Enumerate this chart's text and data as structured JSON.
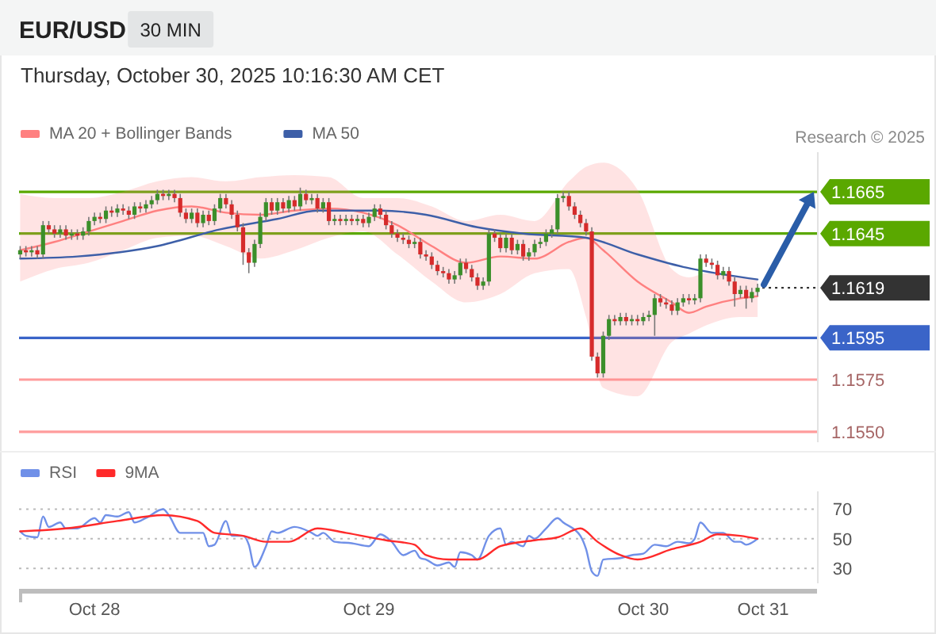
{
  "chart_data": [
    {
      "type": "candlestick",
      "title": "EUR/USD",
      "subtitle": "Thursday, October 30, 2025 10:16:30 AM CET",
      "annotations": [
        "30 MIN",
        "Research © 2025"
      ],
      "x": [
        "2025-10-27T17:30",
        "2025-10-27T18:00",
        "2025-10-27T18:30",
        "2025-10-27T19:00",
        "2025-10-27T19:30",
        "2025-10-27T20:00",
        "2025-10-27T20:30",
        "2025-10-27T21:00",
        "2025-10-27T21:30",
        "2025-10-27T22:00",
        "2025-10-27T22:30",
        "2025-10-27T23:00",
        "2025-10-27T23:30",
        "2025-10-28T00:00",
        "2025-10-28T00:30",
        "2025-10-28T01:00",
        "2025-10-28T01:30",
        "2025-10-28T02:00",
        "2025-10-28T02:30",
        "2025-10-28T03:00",
        "2025-10-28T03:30",
        "2025-10-28T04:00",
        "2025-10-28T04:30",
        "2025-10-28T05:00",
        "2025-10-28T05:30",
        "2025-10-28T06:00",
        "2025-10-28T06:30",
        "2025-10-28T07:00",
        "2025-10-28T07:30",
        "2025-10-28T08:00",
        "2025-10-28T08:30",
        "2025-10-28T09:00",
        "2025-10-28T09:30",
        "2025-10-28T10:00",
        "2025-10-28T10:30",
        "2025-10-28T11:00",
        "2025-10-28T11:30",
        "2025-10-28T12:00",
        "2025-10-28T12:30",
        "2025-10-28T13:00",
        "2025-10-28T13:30",
        "2025-10-28T14:00",
        "2025-10-28T14:30",
        "2025-10-28T15:00",
        "2025-10-28T15:30",
        "2025-10-28T16:00",
        "2025-10-28T16:30",
        "2025-10-28T17:00",
        "2025-10-28T17:30",
        "2025-10-28T18:00",
        "2025-10-28T18:30",
        "2025-10-28T19:00",
        "2025-10-28T19:30",
        "2025-10-28T20:00",
        "2025-10-28T20:30",
        "2025-10-28T21:00",
        "2025-10-28T21:30",
        "2025-10-28T22:00",
        "2025-10-28T22:30",
        "2025-10-28T23:00",
        "2025-10-28T23:30",
        "2025-10-29T00:00",
        "2025-10-29T00:30",
        "2025-10-29T01:00",
        "2025-10-29T01:30",
        "2025-10-29T02:00",
        "2025-10-29T02:30",
        "2025-10-29T03:00",
        "2025-10-29T03:30",
        "2025-10-29T04:00",
        "2025-10-29T04:30",
        "2025-10-29T05:00",
        "2025-10-29T05:30",
        "2025-10-29T06:00",
        "2025-10-29T06:30",
        "2025-10-29T07:00",
        "2025-10-29T07:30",
        "2025-10-29T08:00",
        "2025-10-29T08:30",
        "2025-10-29T09:00",
        "2025-10-29T09:30",
        "2025-10-29T10:00",
        "2025-10-29T10:30",
        "2025-10-29T11:00",
        "2025-10-29T11:30",
        "2025-10-29T12:00",
        "2025-10-29T12:30",
        "2025-10-29T13:00",
        "2025-10-29T13:30",
        "2025-10-29T14:00",
        "2025-10-29T14:30",
        "2025-10-29T15:00",
        "2025-10-29T15:30",
        "2025-10-29T16:00",
        "2025-10-29T16:30",
        "2025-10-29T17:00",
        "2025-10-29T17:30",
        "2025-10-29T18:00",
        "2025-10-29T18:30",
        "2025-10-29T19:00",
        "2025-10-29T19:30",
        "2025-10-29T20:00",
        "2025-10-29T20:30",
        "2025-10-29T21:00",
        "2025-10-29T21:30",
        "2025-10-29T22:00",
        "2025-10-29T22:30",
        "2025-10-29T23:00",
        "2025-10-29T23:30",
        "2025-10-30T00:00",
        "2025-10-30T00:30",
        "2025-10-30T01:00",
        "2025-10-30T01:30",
        "2025-10-30T02:00",
        "2025-10-30T02:30",
        "2025-10-30T03:00",
        "2025-10-30T03:30",
        "2025-10-30T04:00",
        "2025-10-30T04:30",
        "2025-10-30T05:00",
        "2025-10-30T05:30",
        "2025-10-30T06:00",
        "2025-10-30T06:30",
        "2025-10-30T07:00",
        "2025-10-30T07:30",
        "2025-10-30T08:00",
        "2025-10-30T08:30",
        "2025-10-30T09:00",
        "2025-10-30T09:30",
        "2025-10-30T10:00"
      ],
      "ohlc": [
        [
          1.1635,
          1.1639,
          1.1633,
          1.1637
        ],
        [
          1.1637,
          1.1639,
          1.1634,
          1.1636
        ],
        [
          1.1636,
          1.1639,
          1.1634,
          1.1637
        ],
        [
          1.1637,
          1.1639,
          1.1633,
          1.1635
        ],
        [
          1.1635,
          1.1651,
          1.1633,
          1.1649
        ],
        [
          1.1649,
          1.1651,
          1.1645,
          1.1647
        ],
        [
          1.1647,
          1.1649,
          1.1643,
          1.1645
        ],
        [
          1.1645,
          1.1649,
          1.1643,
          1.1647
        ],
        [
          1.1647,
          1.1649,
          1.1642,
          1.1644
        ],
        [
          1.1644,
          1.1647,
          1.1642,
          1.1645
        ],
        [
          1.1645,
          1.1647,
          1.1642,
          1.1644
        ],
        [
          1.1644,
          1.1648,
          1.1642,
          1.1646
        ],
        [
          1.1646,
          1.1653,
          1.1644,
          1.1651
        ],
        [
          1.1651,
          1.1655,
          1.1649,
          1.1653
        ],
        [
          1.1653,
          1.1655,
          1.165,
          1.1652
        ],
        [
          1.1652,
          1.1658,
          1.165,
          1.1656
        ],
        [
          1.1656,
          1.1658,
          1.1653,
          1.1655
        ],
        [
          1.1655,
          1.1659,
          1.1653,
          1.1657
        ],
        [
          1.1657,
          1.1659,
          1.1654,
          1.1656
        ],
        [
          1.1656,
          1.1658,
          1.1652,
          1.1654
        ],
        [
          1.1654,
          1.166,
          1.1652,
          1.1658
        ],
        [
          1.1658,
          1.166,
          1.1655,
          1.1657
        ],
        [
          1.1657,
          1.1661,
          1.1655,
          1.1659
        ],
        [
          1.1659,
          1.1663,
          1.1657,
          1.1661
        ],
        [
          1.1661,
          1.1666,
          1.1659,
          1.1664
        ],
        [
          1.1664,
          1.1666,
          1.1661,
          1.1663
        ],
        [
          1.1663,
          1.1666,
          1.1661,
          1.1664
        ],
        [
          1.1664,
          1.1666,
          1.166,
          1.1662
        ],
        [
          1.1662,
          1.1664,
          1.1653,
          1.1655
        ],
        [
          1.1655,
          1.1657,
          1.165,
          1.1652
        ],
        [
          1.1652,
          1.1657,
          1.165,
          1.1655
        ],
        [
          1.1655,
          1.1657,
          1.1648,
          1.165
        ],
        [
          1.165,
          1.1656,
          1.1648,
          1.1654
        ],
        [
          1.1654,
          1.1656,
          1.1649,
          1.1651
        ],
        [
          1.1651,
          1.1659,
          1.1649,
          1.1657
        ],
        [
          1.1657,
          1.1664,
          1.1655,
          1.1662
        ],
        [
          1.1662,
          1.1664,
          1.1657,
          1.1659
        ],
        [
          1.1659,
          1.1661,
          1.1652,
          1.1654
        ],
        [
          1.1654,
          1.1656,
          1.1646,
          1.1648
        ],
        [
          1.1648,
          1.165,
          1.163,
          1.1636
        ],
        [
          1.1636,
          1.1638,
          1.1626,
          1.1631
        ],
        [
          1.1631,
          1.1642,
          1.1629,
          1.164
        ],
        [
          1.164,
          1.1655,
          1.1638,
          1.1653
        ],
        [
          1.1653,
          1.1662,
          1.1651,
          1.166
        ],
        [
          1.166,
          1.1662,
          1.1654,
          1.1656
        ],
        [
          1.1656,
          1.1662,
          1.1654,
          1.166
        ],
        [
          1.166,
          1.1662,
          1.1655,
          1.1657
        ],
        [
          1.1657,
          1.1663,
          1.1655,
          1.1661
        ],
        [
          1.1661,
          1.1663,
          1.1656,
          1.1658
        ],
        [
          1.1658,
          1.1667,
          1.1656,
          1.1664
        ],
        [
          1.1664,
          1.1666,
          1.1659,
          1.1661
        ],
        [
          1.1661,
          1.1664,
          1.1659,
          1.1662
        ],
        [
          1.1662,
          1.1664,
          1.1655,
          1.1657
        ],
        [
          1.1657,
          1.1662,
          1.1655,
          1.166
        ],
        [
          1.166,
          1.1662,
          1.1649,
          1.1651
        ],
        [
          1.1651,
          1.1654,
          1.1649,
          1.1652
        ],
        [
          1.1652,
          1.1654,
          1.1649,
          1.1651
        ],
        [
          1.1651,
          1.1654,
          1.1649,
          1.1652
        ],
        [
          1.1652,
          1.1654,
          1.1649,
          1.1651
        ],
        [
          1.1651,
          1.1654,
          1.1649,
          1.1652
        ],
        [
          1.1652,
          1.1654,
          1.1648,
          1.165
        ],
        [
          1.165,
          1.1655,
          1.1648,
          1.1653
        ],
        [
          1.1653,
          1.1659,
          1.1651,
          1.1657
        ],
        [
          1.1657,
          1.1659,
          1.1652,
          1.1654
        ],
        [
          1.1654,
          1.1656,
          1.1647,
          1.1649
        ],
        [
          1.1649,
          1.1651,
          1.1643,
          1.1645
        ],
        [
          1.1645,
          1.1647,
          1.1641,
          1.1643
        ],
        [
          1.1643,
          1.1645,
          1.164,
          1.1642
        ],
        [
          1.1642,
          1.1644,
          1.1638,
          1.164
        ],
        [
          1.164,
          1.1643,
          1.1638,
          1.1641
        ],
        [
          1.1641,
          1.1643,
          1.1633,
          1.1635
        ],
        [
          1.1635,
          1.1637,
          1.1632,
          1.1634
        ],
        [
          1.1634,
          1.1636,
          1.1628,
          1.163
        ],
        [
          1.163,
          1.1632,
          1.1625,
          1.1627
        ],
        [
          1.1627,
          1.1629,
          1.1624,
          1.1626
        ],
        [
          1.1626,
          1.1628,
          1.1621,
          1.1623
        ],
        [
          1.1623,
          1.1627,
          1.1621,
          1.1625
        ],
        [
          1.1625,
          1.1633,
          1.1623,
          1.1631
        ],
        [
          1.1631,
          1.1633,
          1.1626,
          1.1628
        ],
        [
          1.1628,
          1.163,
          1.1622,
          1.1624
        ],
        [
          1.1624,
          1.1626,
          1.1618,
          1.162
        ],
        [
          1.162,
          1.1624,
          1.1618,
          1.1622
        ],
        [
          1.1622,
          1.1647,
          1.162,
          1.1645
        ],
        [
          1.1645,
          1.1647,
          1.1641,
          1.1643
        ],
        [
          1.1643,
          1.1645,
          1.1636,
          1.1638
        ],
        [
          1.1638,
          1.1645,
          1.1636,
          1.1643
        ],
        [
          1.1643,
          1.1645,
          1.1635,
          1.1637
        ],
        [
          1.1637,
          1.1642,
          1.1635,
          1.164
        ],
        [
          1.164,
          1.1642,
          1.1632,
          1.1634
        ],
        [
          1.1634,
          1.1638,
          1.1632,
          1.1636
        ],
        [
          1.1636,
          1.1642,
          1.1634,
          1.164
        ],
        [
          1.164,
          1.1643,
          1.1638,
          1.1641
        ],
        [
          1.1641,
          1.1647,
          1.1639,
          1.1645
        ],
        [
          1.1645,
          1.1649,
          1.1643,
          1.1647
        ],
        [
          1.1647,
          1.1664,
          1.1645,
          1.1662
        ],
        [
          1.1662,
          1.1665,
          1.166,
          1.1663
        ],
        [
          1.1663,
          1.1665,
          1.1656,
          1.1658
        ],
        [
          1.1658,
          1.166,
          1.1652,
          1.1654
        ],
        [
          1.1654,
          1.1656,
          1.1648,
          1.165
        ],
        [
          1.165,
          1.1652,
          1.1644,
          1.1646
        ],
        [
          1.1646,
          1.1648,
          1.1584,
          1.1586
        ],
        [
          1.1586,
          1.1588,
          1.1576,
          1.1578
        ],
        [
          1.1578,
          1.1598,
          1.1576,
          1.1596
        ],
        [
          1.1596,
          1.1606,
          1.1594,
          1.1604
        ],
        [
          1.1604,
          1.1606,
          1.1601,
          1.1603
        ],
        [
          1.1603,
          1.1607,
          1.1601,
          1.1605
        ],
        [
          1.1605,
          1.1607,
          1.1601,
          1.1603
        ],
        [
          1.1603,
          1.1606,
          1.1601,
          1.1604
        ],
        [
          1.1604,
          1.1606,
          1.1601,
          1.1603
        ],
        [
          1.1603,
          1.1607,
          1.1601,
          1.1605
        ],
        [
          1.1605,
          1.1608,
          1.1603,
          1.1606
        ],
        [
          1.1606,
          1.1616,
          1.1596,
          1.1614
        ],
        [
          1.1614,
          1.1616,
          1.161,
          1.1612
        ],
        [
          1.1612,
          1.1614,
          1.1609,
          1.1611
        ],
        [
          1.1611,
          1.1613,
          1.1606,
          1.1608
        ],
        [
          1.1608,
          1.1614,
          1.1606,
          1.1612
        ],
        [
          1.1612,
          1.1616,
          1.161,
          1.1614
        ],
        [
          1.1614,
          1.1616,
          1.1611,
          1.1613
        ],
        [
          1.1613,
          1.1616,
          1.1611,
          1.1614
        ],
        [
          1.1614,
          1.1635,
          1.1612,
          1.1633
        ],
        [
          1.1633,
          1.1635,
          1.1629,
          1.1631
        ],
        [
          1.1631,
          1.1633,
          1.1628,
          1.163
        ],
        [
          1.163,
          1.1632,
          1.1623,
          1.1625
        ],
        [
          1.1625,
          1.1629,
          1.1623,
          1.1627
        ],
        [
          1.1627,
          1.1629,
          1.162,
          1.1622
        ],
        [
          1.1622,
          1.1624,
          1.161,
          1.1616
        ],
        [
          1.1616,
          1.162,
          1.1614,
          1.1618
        ],
        [
          1.1618,
          1.162,
          1.1609,
          1.1614
        ],
        [
          1.1614,
          1.1619,
          1.1612,
          1.1617
        ],
        [
          1.1617,
          1.1621,
          1.1615,
          1.1619
        ]
      ],
      "series": [
        {
          "type": "line",
          "name": "MA 20 + Bollinger Bands",
          "color": "#ff8080",
          "x": [
            "2025-10-27T17:30",
            "2025-10-27T20:30",
            "2025-10-27T23:30",
            "2025-10-28T02:30",
            "2025-10-28T05:30",
            "2025-10-28T08:30",
            "2025-10-28T11:30",
            "2025-10-28T14:30",
            "2025-10-28T17:30",
            "2025-10-28T20:30",
            "2025-10-28T23:30",
            "2025-10-29T02:30",
            "2025-10-29T05:30",
            "2025-10-29T08:30",
            "2025-10-29T11:30",
            "2025-10-29T14:30",
            "2025-10-29T17:30",
            "2025-10-29T19:00",
            "2025-10-29T20:30",
            "2025-10-29T23:30",
            "2025-10-30T02:30",
            "2025-10-30T04:00",
            "2025-10-30T05:30",
            "2025-10-30T08:30",
            "2025-10-30T10:00"
          ],
          "values": [
            1.1637,
            1.1641,
            1.1646,
            1.1651,
            1.1656,
            1.1658,
            1.1655,
            1.1654,
            1.1656,
            1.1657,
            1.1655,
            1.1649,
            1.1639,
            1.1631,
            1.1634,
            1.1633,
            1.1641,
            1.1643,
            1.1637,
            1.1622,
            1.1612,
            1.1607,
            1.161,
            1.1614,
            1.1615
          ],
          "upper": [
            1.1664,
            1.1662,
            1.1662,
            1.1665,
            1.167,
            1.1672,
            1.167,
            1.1672,
            1.1673,
            1.1672,
            1.1662,
            1.1662,
            1.1658,
            1.1651,
            1.1654,
            1.1651,
            1.167,
            1.1677,
            1.1679,
            1.1666,
            1.1628,
            1.1624,
            1.1626,
            1.1624,
            1.1623
          ],
          "lower": [
            1.1622,
            1.1628,
            1.1631,
            1.1637,
            1.1643,
            1.1644,
            1.1639,
            1.1633,
            1.1637,
            1.1643,
            1.1646,
            1.1635,
            1.1622,
            1.1612,
            1.1616,
            1.1626,
            1.1628,
            1.1605,
            1.1571,
            1.1567,
            1.1593,
            1.1597,
            1.1601,
            1.1605,
            1.1605
          ]
        },
        {
          "type": "line",
          "name": "MA 50",
          "color": "#3d5fa8",
          "x": [
            "2025-10-27T17:30",
            "2025-10-27T22:30",
            "2025-10-28T05:30",
            "2025-10-28T11:00",
            "2025-10-28T16:00",
            "2025-10-28T19:30",
            "2025-10-29T01:00",
            "2025-10-29T05:00",
            "2025-10-29T09:30",
            "2025-10-29T13:30",
            "2025-10-29T19:00",
            "2025-10-29T23:30",
            "2025-10-30T03:30",
            "2025-10-30T07:30",
            "2025-10-30T10:00"
          ],
          "values": [
            1.1633,
            1.1634,
            1.1639,
            1.1647,
            1.1652,
            1.1656,
            1.1656,
            1.1654,
            1.1648,
            1.1645,
            1.1643,
            1.1635,
            1.1629,
            1.1625,
            1.1623
          ]
        }
      ],
      "xlim": [
        "2025-10-27T17:24",
        "2025-10-30T15:12"
      ],
      "ylim": [
        1.1545,
        1.1684
      ],
      "ref_lines": [
        {
          "axis": "y",
          "value": 1.1665,
          "label": "1.1665",
          "color": "#5aa800"
        },
        {
          "axis": "y",
          "value": 1.1645,
          "label": "1.1645",
          "color": "#5aa800"
        },
        {
          "axis": "y",
          "value": 1.1619,
          "label": "1.1619",
          "color": "#333333",
          "line_style": "dotted"
        },
        {
          "axis": "y",
          "value": 1.1595,
          "label": "1.1595",
          "color": "#3a64c8"
        },
        {
          "axis": "y",
          "value": 1.1575,
          "label": "1.1575",
          "color": "#ff9c9c"
        },
        {
          "axis": "y",
          "value": 1.155,
          "label": "1.1550",
          "color": "#ff9c9c"
        }
      ],
      "legend": "top left",
      "tick_labels": false
    },
    {
      "type": "line",
      "series": [
        {
          "name": "RSI",
          "color": "#7090e8",
          "x": [
            "2025-10-27T17:30",
            "2025-10-27T18:00",
            "2025-10-27T19:00",
            "2025-10-27T19:30",
            "2025-10-27T20:00",
            "2025-10-27T21:00",
            "2025-10-27T21:30",
            "2025-10-27T22:30",
            "2025-10-28T00:00",
            "2025-10-28T00:30",
            "2025-10-28T01:00",
            "2025-10-28T02:00",
            "2025-10-28T03:00",
            "2025-10-28T03:30",
            "2025-10-28T04:30",
            "2025-10-28T06:00",
            "2025-10-28T06:30",
            "2025-10-28T07:30",
            "2025-10-28T08:30",
            "2025-10-28T09:30",
            "2025-10-28T10:00",
            "2025-10-28T10:30",
            "2025-10-28T11:30",
            "2025-10-28T12:00",
            "2025-10-28T13:00",
            "2025-10-28T13:30",
            "2025-10-28T14:00",
            "2025-10-28T15:00",
            "2025-10-28T15:30",
            "2025-10-28T16:00",
            "2025-10-28T17:30",
            "2025-10-28T19:00",
            "2025-10-28T19:30",
            "2025-10-28T20:00",
            "2025-10-28T21:00",
            "2025-10-28T22:30",
            "2025-10-29T00:00",
            "2025-10-29T01:00",
            "2025-10-29T02:00",
            "2025-10-29T03:00",
            "2025-10-29T04:00",
            "2025-10-29T04:30",
            "2025-10-29T05:00",
            "2025-10-29T06:00",
            "2025-10-29T07:00",
            "2025-10-29T07:30",
            "2025-10-29T08:00",
            "2025-10-29T09:00",
            "2025-10-29T09:30",
            "2025-10-29T10:30",
            "2025-10-29T11:30",
            "2025-10-29T12:00",
            "2025-10-29T12:30",
            "2025-10-29T13:30",
            "2025-10-29T14:00",
            "2025-10-29T14:30",
            "2025-10-29T15:30",
            "2025-10-29T16:30",
            "2025-10-29T17:00",
            "2025-10-29T18:30",
            "2025-10-29T19:00",
            "2025-10-29T19:30",
            "2025-10-29T20:00",
            "2025-10-29T20:30",
            "2025-10-29T22:00",
            "2025-10-29T23:00",
            "2025-10-30T00:00",
            "2025-10-30T01:00",
            "2025-10-30T02:00",
            "2025-10-30T03:00",
            "2025-10-30T04:00",
            "2025-10-30T04:30",
            "2025-10-30T05:00",
            "2025-10-30T06:00",
            "2025-10-30T07:00",
            "2025-10-30T08:00",
            "2025-10-30T08:30",
            "2025-10-30T09:00",
            "2025-10-30T10:00"
          ],
          "values": [
            55,
            52,
            51,
            65,
            58,
            61,
            57,
            57,
            64,
            61,
            66,
            65,
            68,
            61,
            64,
            70,
            66,
            54,
            54,
            54,
            45,
            46,
            62,
            52,
            52,
            46,
            31,
            45,
            55,
            54,
            58,
            54,
            52,
            54,
            48,
            47,
            45,
            53,
            48,
            39,
            42,
            37,
            36,
            32,
            34,
            31,
            41,
            39,
            36,
            52,
            57,
            46,
            48,
            45,
            52,
            50,
            57,
            64,
            61,
            52,
            43,
            28,
            25,
            36,
            37,
            39,
            40,
            46,
            45,
            48,
            47,
            50,
            61,
            54,
            54,
            48,
            48,
            46,
            50
          ]
        },
        {
          "name": "9MA",
          "color": "#ff2a2a",
          "x": [
            "2025-10-27T17:30",
            "2025-10-27T21:30",
            "2025-10-28T02:00",
            "2025-10-28T06:00",
            "2025-10-28T09:00",
            "2025-10-28T10:30",
            "2025-10-28T13:00",
            "2025-10-28T15:00",
            "2025-10-28T17:00",
            "2025-10-28T19:30",
            "2025-10-28T22:00",
            "2025-10-29T01:30",
            "2025-10-29T04:00",
            "2025-10-29T05:00",
            "2025-10-29T07:00",
            "2025-10-29T09:30",
            "2025-10-29T11:30",
            "2025-10-29T14:30",
            "2025-10-29T16:30",
            "2025-10-29T18:30",
            "2025-10-29T20:00",
            "2025-10-29T22:00",
            "2025-10-29T23:30",
            "2025-10-30T02:30",
            "2025-10-30T05:00",
            "2025-10-30T06:30",
            "2025-10-30T08:30",
            "2025-10-30T10:00"
          ],
          "values": [
            55,
            57,
            62,
            66,
            62,
            54,
            52,
            48,
            48,
            57,
            54,
            49,
            46,
            39,
            36,
            36,
            45,
            49,
            51,
            57,
            48,
            39,
            36,
            43,
            48,
            53,
            52,
            50
          ]
        }
      ],
      "xlim": [
        "2025-10-27T17:24",
        "2025-10-30T15:12"
      ],
      "xticks": [
        {
          "value": "2025-10-28T00:00",
          "label": "Oct 28"
        },
        {
          "value": "2025-10-29T00:00",
          "label": "Oct 29"
        },
        {
          "value": "2025-10-30T00:00",
          "label": "Oct 30"
        }
      ],
      "annotations": [
        "Oct 31"
      ],
      "ylim": [
        20,
        82
      ],
      "yticks": [
        30,
        50,
        70
      ],
      "grid": "y",
      "legend": "top left"
    }
  ]
}
